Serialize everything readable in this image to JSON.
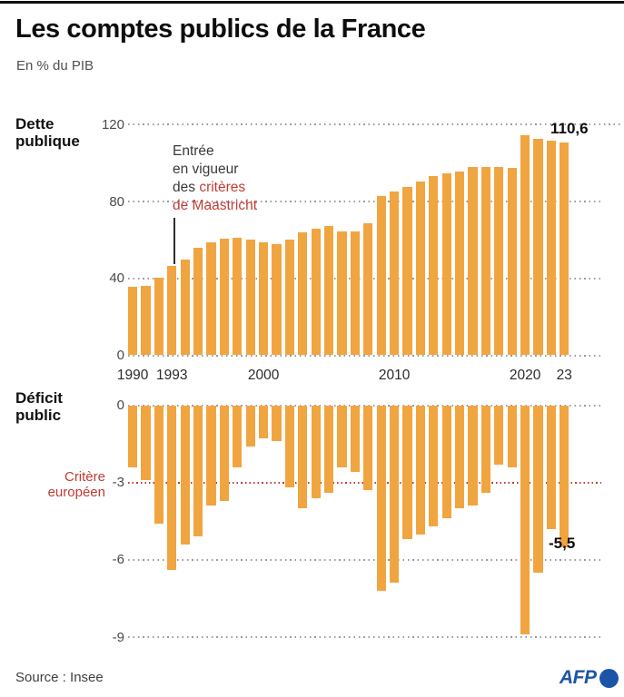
{
  "page": {
    "title": "Les comptes publics de la France",
    "subtitle": "En % du PIB",
    "source": "Source : Insee",
    "logo_text": "AFP"
  },
  "colors": {
    "bar_orange": "#F0A541",
    "accent_red": "#C23B32",
    "grid_gray": "#9A9A9A",
    "afp_blue": "#1C55A7",
    "text_dark": "#0D0D0D"
  },
  "chart_data": [
    {
      "type": "bar",
      "name": "dette-publique",
      "title": "Dette publique",
      "unit": "En % du PIB",
      "grid": "dotted",
      "ylim": [
        0,
        120
      ],
      "categories": [
        1990,
        1991,
        1992,
        1993,
        1994,
        1995,
        1996,
        1997,
        1998,
        1999,
        2000,
        2001,
        2002,
        2003,
        2004,
        2005,
        2006,
        2007,
        2008,
        2009,
        2010,
        2011,
        2012,
        2013,
        2014,
        2015,
        2016,
        2017,
        2018,
        2019,
        2020,
        2021,
        2022,
        2023
      ],
      "values": [
        35.6,
        36.3,
        40.3,
        46.6,
        49.9,
        55.8,
        58.9,
        60.9,
        61.2,
        60.2,
        58.6,
        58.1,
        60.0,
        64.1,
        65.7,
        67.1,
        64.4,
        64.5,
        68.8,
        83.0,
        85.3,
        87.8,
        90.6,
        93.4,
        94.9,
        95.6,
        98.0,
        98.1,
        97.8,
        97.4,
        114.6,
        112.9,
        111.8,
        110.6
      ],
      "yticks": [
        {
          "label": "120",
          "value": 120
        },
        {
          "label": "80",
          "value": 80
        },
        {
          "label": "40",
          "value": 40
        },
        {
          "label": "0",
          "value": 0
        }
      ],
      "xticks": [
        {
          "label": "1990",
          "year": 1990
        },
        {
          "label": "1993",
          "year": 1993
        },
        {
          "label": "2000",
          "year": 2000
        },
        {
          "label": "2010",
          "year": 2010
        },
        {
          "label": "2020",
          "year": 2020
        },
        {
          "label": "23",
          "year": 2023
        }
      ],
      "end_label": "110,6",
      "annotation": {
        "points_to_year": 1993,
        "lines": [
          [
            {
              "text": "Entrée",
              "red": false
            }
          ],
          [
            {
              "text": "en vigueur",
              "red": false
            }
          ],
          [
            {
              "text": "des ",
              "red": false
            },
            {
              "text": "critères",
              "red": true
            }
          ],
          [
            {
              "text": "de Maastricht",
              "red": true
            }
          ]
        ]
      }
    },
    {
      "type": "bar",
      "name": "deficit-public",
      "title": "Déficit public",
      "unit": "En % du PIB",
      "grid": "dotted",
      "ylim": [
        -9,
        0
      ],
      "categories": [
        1990,
        1991,
        1992,
        1993,
        1994,
        1995,
        1996,
        1997,
        1998,
        1999,
        2000,
        2001,
        2002,
        2003,
        2004,
        2005,
        2006,
        2007,
        2008,
        2009,
        2010,
        2011,
        2012,
        2013,
        2014,
        2015,
        2016,
        2017,
        2018,
        2019,
        2020,
        2021,
        2022,
        2023
      ],
      "values": [
        -2.4,
        -2.9,
        -4.6,
        -6.4,
        -5.4,
        -5.1,
        -3.9,
        -3.7,
        -2.4,
        -1.6,
        -1.3,
        -1.4,
        -3.2,
        -4.0,
        -3.6,
        -3.4,
        -2.4,
        -2.6,
        -3.3,
        -7.2,
        -6.9,
        -5.2,
        -5.0,
        -4.7,
        -4.4,
        -4.0,
        -3.9,
        -3.4,
        -2.3,
        -2.4,
        -8.9,
        -6.5,
        -4.8,
        -5.5
      ],
      "yticks": [
        {
          "label": "0",
          "value": 0
        },
        {
          "label": "-3",
          "value": -3
        },
        {
          "label": "-6",
          "value": -6
        },
        {
          "label": "-9",
          "value": -9
        }
      ],
      "threshold": {
        "label": "Critère européen",
        "value": -3
      },
      "end_label": "-5,5"
    }
  ]
}
